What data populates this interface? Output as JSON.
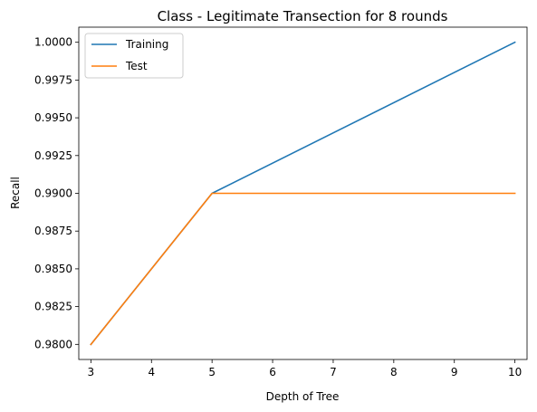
{
  "chart_data": {
    "type": "line",
    "title": "Class - Legitimate Transection for 8 rounds",
    "xlabel": "Depth of Tree",
    "ylabel": "Recall",
    "xlim": [
      2.8,
      10.2
    ],
    "ylim": [
      0.979,
      1.001
    ],
    "xticks": [
      3,
      4,
      5,
      6,
      7,
      8,
      9,
      10
    ],
    "yticks": [
      0.98,
      0.9825,
      0.985,
      0.9875,
      0.99,
      0.9925,
      0.995,
      0.9975,
      1.0
    ],
    "ytick_labels": [
      "0.9800",
      "0.9825",
      "0.9850",
      "0.9875",
      "0.9900",
      "0.9925",
      "0.9950",
      "0.9975",
      "1.0000"
    ],
    "grid": false,
    "legend_position": "upper-left",
    "series": [
      {
        "name": "Training",
        "color": "#1f77b4",
        "x": [
          3,
          5,
          10
        ],
        "y": [
          0.98,
          0.99,
          1.0
        ]
      },
      {
        "name": "Test",
        "color": "#ff7f0e",
        "x": [
          3,
          5,
          10
        ],
        "y": [
          0.98,
          0.99,
          0.99
        ]
      }
    ]
  }
}
